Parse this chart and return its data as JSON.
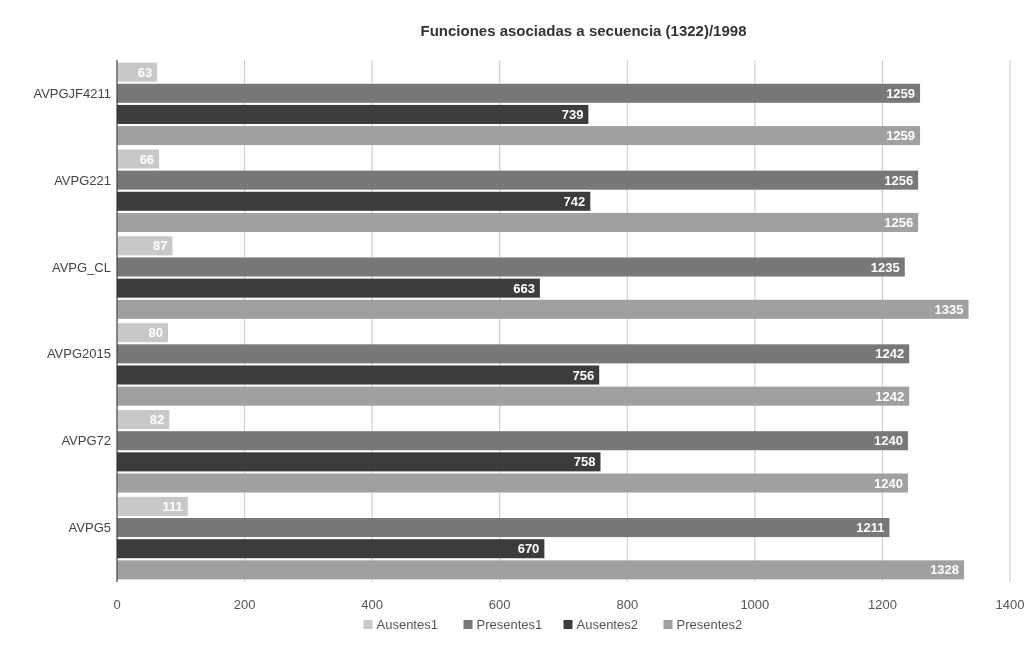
{
  "chart_data": {
    "type": "bar",
    "orientation": "horizontal",
    "title": "Funciones asociadas a secuencia (1322)/1998",
    "categories": [
      "AVPGJF4211",
      "AVPG221",
      "AVPG_CL",
      "AVPG2015",
      "AVPG72",
      "AVPG5"
    ],
    "series": [
      {
        "name": "Ausentes1",
        "color": "#c8c8c8",
        "values": [
          63,
          66,
          87,
          80,
          82,
          111
        ]
      },
      {
        "name": "Presentes1",
        "color": "#787878",
        "values": [
          1259,
          1256,
          1235,
          1242,
          1240,
          1211
        ]
      },
      {
        "name": "Ausentes2",
        "color": "#3c3c3c",
        "values": [
          739,
          742,
          663,
          756,
          758,
          670
        ]
      },
      {
        "name": "Presentes2",
        "color": "#a0a0a0",
        "values": [
          1259,
          1256,
          1335,
          1242,
          1240,
          1328
        ]
      }
    ],
    "xlim": [
      0,
      1400
    ],
    "xticks": [
      0,
      200,
      400,
      600,
      800,
      1000,
      1200,
      1400
    ],
    "grid": "x",
    "legend": "bottom",
    "data_labels": true
  }
}
